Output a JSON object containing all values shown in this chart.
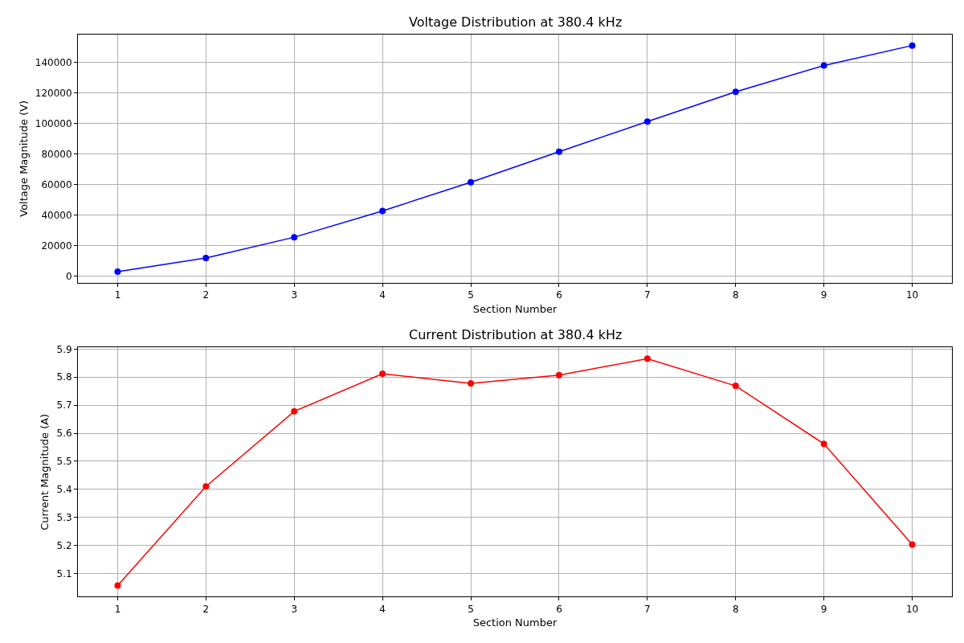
{
  "chart_data": [
    {
      "type": "line",
      "title": "Voltage Distribution at 380.4 kHz",
      "xlabel": "Section Number",
      "ylabel": "Voltage Magnitude (V)",
      "x": [
        1,
        2,
        3,
        4,
        5,
        6,
        7,
        8,
        9,
        10
      ],
      "series": [
        {
          "color": "#0000ff",
          "values": [
            3100,
            12000,
            25600,
            42800,
            61600,
            81500,
            101300,
            120700,
            137900,
            151000
          ]
        }
      ],
      "xlim": [
        0.55,
        10.45
      ],
      "xticks": [
        1,
        2,
        3,
        4,
        5,
        6,
        7,
        8,
        9,
        10
      ],
      "ylim": [
        -4200,
        158300
      ],
      "yticks": [
        0,
        20000,
        40000,
        60000,
        80000,
        100000,
        120000,
        140000
      ],
      "grid": true,
      "marker": "circle",
      "line_style": "solid"
    },
    {
      "type": "line",
      "title": "Current Distribution at 380.4 kHz",
      "xlabel": "Section Number",
      "ylabel": "Current Magnitude (A)",
      "x": [
        1,
        2,
        3,
        4,
        5,
        6,
        7,
        8,
        9,
        10
      ],
      "series": [
        {
          "color": "#ff0000",
          "values": [
            5.057,
            5.41,
            5.678,
            5.812,
            5.778,
            5.807,
            5.866,
            5.769,
            5.562,
            5.203
          ]
        }
      ],
      "xlim": [
        0.55,
        10.45
      ],
      "xticks": [
        1,
        2,
        3,
        4,
        5,
        6,
        7,
        8,
        9,
        10
      ],
      "ylim": [
        5.017,
        5.906
      ],
      "yticks": [
        5.1,
        5.2,
        5.3,
        5.4,
        5.5,
        5.6,
        5.7,
        5.8,
        5.9
      ],
      "grid": true,
      "marker": "circle",
      "line_style": "solid"
    }
  ]
}
